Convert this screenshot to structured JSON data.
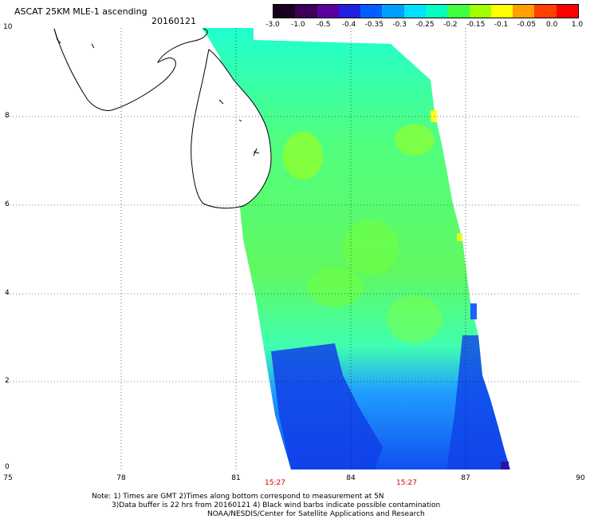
{
  "title": "ASCAT 25KM MLE-1 ascending",
  "date": "20160121",
  "colorbar": {
    "labels": [
      "-3.0",
      "-1.0",
      "-0.5",
      "-0.4",
      "-0.35",
      "-0.3",
      "-0.25",
      "-0.2",
      "-0.15",
      "-0.1",
      "-0.05",
      "0.0",
      "1.0"
    ],
    "colors": [
      "#1a0020",
      "#3a005a",
      "#5a00a0",
      "#2020e0",
      "#0060ff",
      "#00a0ff",
      "#00e0ff",
      "#00ffc0",
      "#40ff40",
      "#a0ff00",
      "#ffff00",
      "#ffa000",
      "#ff4000",
      "#ff0000"
    ]
  },
  "axes": {
    "x_ticks": [
      "75",
      "78",
      "81",
      "84",
      "87",
      "90"
    ],
    "y_ticks": [
      "0",
      "2",
      "4",
      "6",
      "8",
      "10"
    ]
  },
  "times": [
    "15:27",
    "15:27"
  ],
  "notes": {
    "line1": "Note: 1) Times are GMT 2)Times along bottom correspond to measurement at 5N",
    "line2": "3)Data buffer is 22 hrs from 20160121 4) Black wind barbs indicate possible contamination",
    "line3": "NOAA/NESDIS/Center for Satellite Applications and Research"
  }
}
